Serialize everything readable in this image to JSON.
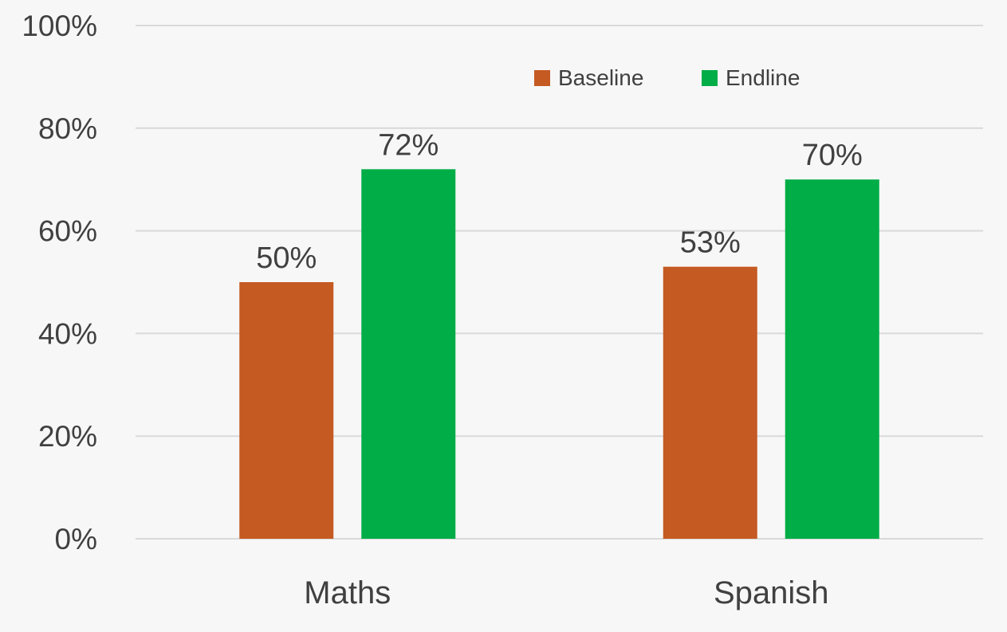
{
  "chart_data": {
    "type": "bar",
    "categories": [
      "Maths",
      "Spanish"
    ],
    "series": [
      {
        "name": "Baseline",
        "values": [
          50,
          53
        ],
        "labels": [
          "50%",
          "53%"
        ],
        "color": "#c55a22"
      },
      {
        "name": "Endline",
        "values": [
          72,
          70
        ],
        "labels": [
          "72%",
          "70%"
        ],
        "color": "#00ad47"
      }
    ],
    "ylim": [
      0,
      100
    ],
    "yticks": [
      0,
      20,
      40,
      60,
      80,
      100
    ],
    "ytick_labels": [
      "0%",
      "20%",
      "40%",
      "60%",
      "80%",
      "100%"
    ],
    "grid": true,
    "legend": "top-right"
  }
}
